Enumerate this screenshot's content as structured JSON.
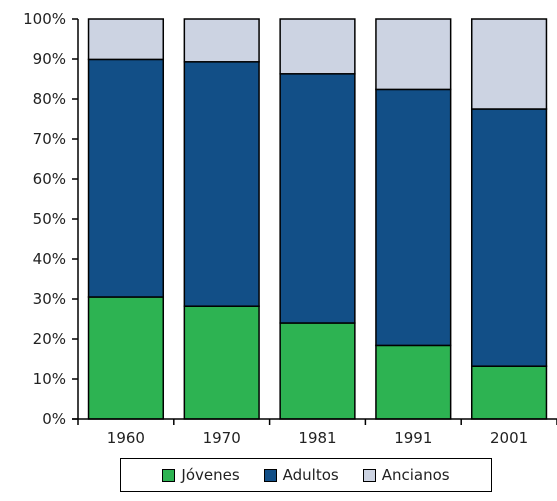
{
  "chart_data": {
    "type": "bar",
    "stacked": true,
    "percent": true,
    "categories": [
      "1960",
      "1970",
      "1981",
      "1991",
      "2001"
    ],
    "series": [
      {
        "name": "Jóvenes",
        "color": "#2db352",
        "values": [
          30.5,
          28.2,
          24.0,
          18.4,
          13.2
        ]
      },
      {
        "name": "Adultos",
        "color": "#124f87",
        "values": [
          59.4,
          61.1,
          62.3,
          64.0,
          64.3
        ]
      },
      {
        "name": "Ancianos",
        "color": "#ccd3e2",
        "values": [
          10.1,
          10.7,
          13.7,
          17.6,
          22.5
        ]
      }
    ],
    "ylim": [
      0,
      100
    ],
    "yticks": [
      "0%",
      "10%",
      "20%",
      "30%",
      "40%",
      "50%",
      "60%",
      "70%",
      "80%",
      "90%",
      "100%"
    ],
    "grid": false,
    "legend_position": "bottom"
  }
}
